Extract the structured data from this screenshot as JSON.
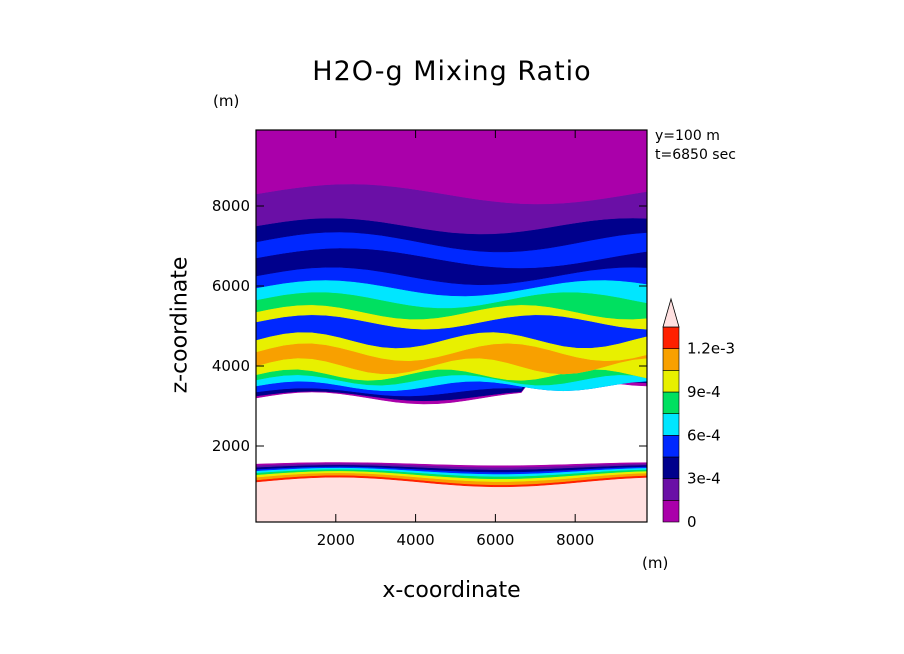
{
  "chart_data": {
    "type": "heatmap",
    "title": "H2O-g Mixing Ratio",
    "xlabel": "x-coordinate",
    "ylabel": "z-coordinate",
    "x_unit": "(m)",
    "y_unit": "(m)",
    "annotations": [
      "y=100 m",
      "t=6850 sec"
    ],
    "xlim": [
      0,
      9800
    ],
    "ylim": [
      100,
      9900
    ],
    "x_ticks": [
      2000,
      4000,
      6000,
      8000
    ],
    "x_tick_labels": [
      "2000",
      "4000",
      "6000",
      "8000"
    ],
    "y_ticks": [
      2000,
      4000,
      6000,
      8000
    ],
    "y_tick_labels": [
      "2000",
      "4000",
      "6000",
      "8000"
    ],
    "colorbar": {
      "levels": [
        0,
        0.00015,
        0.0003,
        0.00045,
        0.0006,
        0.00075,
        0.0009,
        0.00105,
        0.0012,
        0.00135
      ],
      "colors": [
        "#aa00aa",
        "#6a0fa6",
        "#00008c",
        "#0028ff",
        "#00e6ff",
        "#00e060",
        "#e8f000",
        "#f8a000",
        "#ff2000",
        "#ffbdbd"
      ],
      "extend_color": "#ffe0e0",
      "tick_values": [
        0,
        0.0003,
        0.0006,
        0.0009,
        0.0012
      ],
      "tick_labels": [
        "0",
        "3e-4",
        "6e-4",
        "9e-4",
        "1.2e-3"
      ]
    },
    "bands": [
      {
        "z": [
          100,
          800
        ],
        "value": "1.2e-3+",
        "color": "#ffe0e0"
      },
      {
        "z": [
          800,
          1500
        ],
        "value": "surface gradient 1.2e-3 to 0",
        "color": "mixed"
      },
      {
        "z": [
          1500,
          3300
        ],
        "value": "below 0 (no fill)",
        "color": "#ffffff"
      },
      {
        "z": [
          3300,
          5800
        ],
        "value": "3e-4 to 9e-4 layered",
        "color": "mixed"
      },
      {
        "z": [
          5800,
          7400
        ],
        "value": "1.5e-4 to 6e-4",
        "color": "mixed"
      },
      {
        "z": [
          7400,
          9900
        ],
        "value": "0 to 3e-4",
        "color": "mixed"
      }
    ]
  }
}
